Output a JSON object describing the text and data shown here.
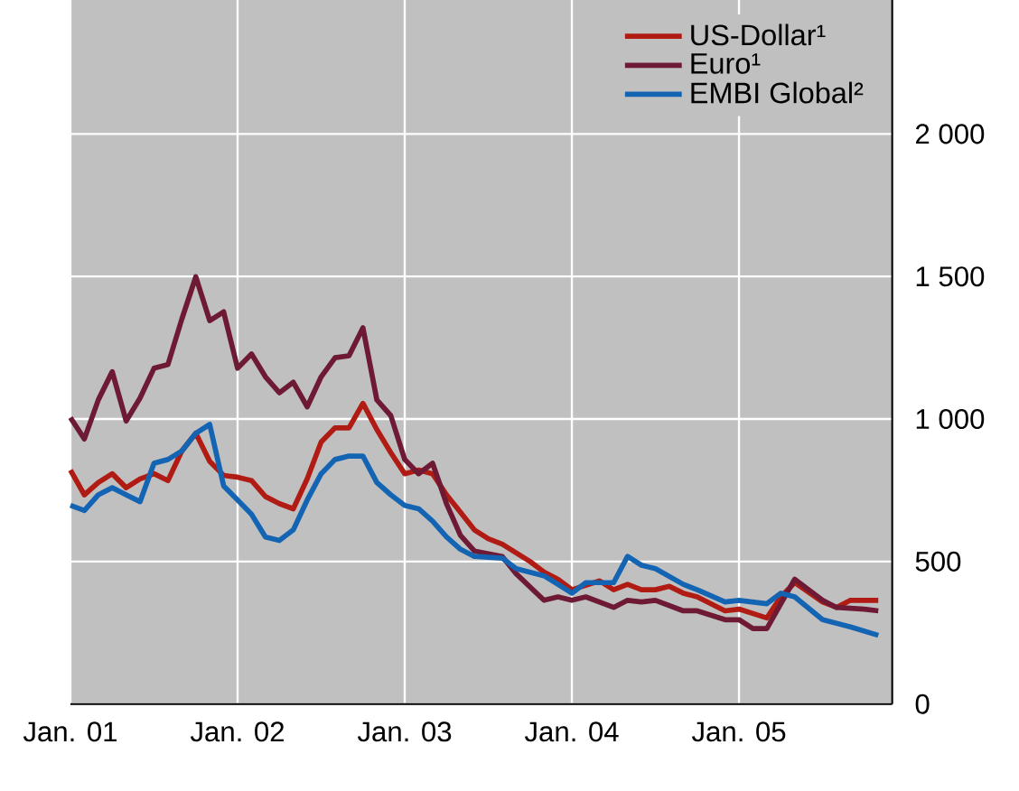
{
  "chart_data": {
    "type": "line",
    "xlim": [
      "2001-01",
      "2005-12"
    ],
    "ylim": [
      0,
      2470
    ],
    "xticks": [
      {
        "value": "2001-01",
        "label": "Jan. 01"
      },
      {
        "value": "2002-01",
        "label": "Jan. 02"
      },
      {
        "value": "2003-01",
        "label": "Jan. 03"
      },
      {
        "value": "2004-01",
        "label": "Jan. 04"
      },
      {
        "value": "2005-01",
        "label": "Jan. 05"
      }
    ],
    "yticks": [
      0,
      500,
      {
        "value": 1000,
        "label": "1 000"
      },
      {
        "value": 1500,
        "label": "1 500"
      },
      {
        "value": 2000,
        "label": "2 000"
      }
    ],
    "grid": true,
    "legend": "top right",
    "series": [
      {
        "name": "US-Dollar¹",
        "color": "#b01c14",
        "x": [
          "2001-01",
          "2001-02",
          "2001-03",
          "2001-04",
          "2001-05",
          "2001-06",
          "2001-07",
          "2001-08",
          "2001-09",
          "2001-10",
          "2001-11",
          "2001-12",
          "2002-01",
          "2002-02",
          "2002-03",
          "2002-04",
          "2002-05",
          "2002-06",
          "2002-07",
          "2002-08",
          "2002-09",
          "2002-10",
          "2002-11",
          "2002-12",
          "2003-01",
          "2003-02",
          "2003-03",
          "2003-04",
          "2003-05",
          "2003-06",
          "2003-07",
          "2003-08",
          "2003-10",
          "2003-11",
          "2003-12",
          "2004-01",
          "2004-03",
          "2004-04",
          "2004-05",
          "2004-06",
          "2004-07",
          "2004-08",
          "2004-09",
          "2004-10",
          "2004-12",
          "2005-01",
          "2005-03",
          "2005-04",
          "2005-05",
          "2005-07",
          "2005-08",
          "2005-09",
          "2005-11"
        ],
        "values": [
          821,
          734,
          777,
          808,
          759,
          790,
          808,
          784,
          888,
          950,
          851,
          802,
          796,
          784,
          728,
          703,
          685,
          790,
          919,
          969,
          969,
          1055,
          963,
          882,
          808,
          821,
          808,
          734,
          673,
          611,
          580,
          561,
          500,
          463,
          438,
          401,
          432,
          401,
          420,
          401,
          401,
          413,
          389,
          376,
          327,
          333,
          302,
          376,
          426,
          358,
          339,
          364,
          364
        ]
      },
      {
        "name": "Euro¹",
        "color": "#6e1a34",
        "x": [
          "2001-01",
          "2001-02",
          "2001-03",
          "2001-04",
          "2001-05",
          "2001-06",
          "2001-07",
          "2001-08",
          "2001-09",
          "2001-10",
          "2001-11",
          "2001-12",
          "2002-01",
          "2002-02",
          "2002-03",
          "2002-04",
          "2002-05",
          "2002-06",
          "2002-07",
          "2002-08",
          "2002-09",
          "2002-10",
          "2002-11",
          "2002-12",
          "2003-01",
          "2003-02",
          "2003-03",
          "2003-04",
          "2003-05",
          "2003-06",
          "2003-08",
          "2003-09",
          "2003-11",
          "2003-12",
          "2004-01",
          "2004-02",
          "2004-04",
          "2004-05",
          "2004-06",
          "2004-07",
          "2004-09",
          "2004-10",
          "2004-12",
          "2005-01",
          "2005-02",
          "2005-03",
          "2005-05",
          "2005-07",
          "2005-08",
          "2005-10",
          "2005-11"
        ],
        "values": [
          1005,
          930,
          1067,
          1166,
          993,
          1074,
          1178,
          1191,
          1351,
          1499,
          1345,
          1376,
          1178,
          1228,
          1148,
          1092,
          1129,
          1043,
          1148,
          1215,
          1222,
          1320,
          1067,
          1012,
          858,
          808,
          845,
          703,
          592,
          537,
          518,
          457,
          364,
          376,
          364,
          376,
          339,
          364,
          358,
          364,
          327,
          327,
          296,
          296,
          265,
          265,
          438,
          364,
          339,
          333,
          327
        ]
      },
      {
        "name": "EMBI Global²",
        "color": "#1464b4",
        "x": [
          "2001-01",
          "2001-02",
          "2001-03",
          "2001-04",
          "2001-05",
          "2001-06",
          "2001-07",
          "2001-08",
          "2001-09",
          "2001-10",
          "2001-11",
          "2001-12",
          "2002-01",
          "2002-02",
          "2002-03",
          "2002-04",
          "2002-05",
          "2002-06",
          "2002-07",
          "2002-08",
          "2002-09",
          "2002-10",
          "2002-11",
          "2002-12",
          "2003-01",
          "2003-02",
          "2003-03",
          "2003-04",
          "2003-05",
          "2003-06",
          "2003-08",
          "2003-09",
          "2003-11",
          "2003-12",
          "2004-01",
          "2004-02",
          "2004-04",
          "2004-05",
          "2004-06",
          "2004-07",
          "2004-09",
          "2004-10",
          "2004-12",
          "2005-01",
          "2005-03",
          "2005-04",
          "2005-05",
          "2005-07",
          "2005-09",
          "2005-11"
        ],
        "values": [
          697,
          679,
          734,
          759,
          734,
          710,
          845,
          858,
          888,
          950,
          981,
          765,
          716,
          666,
          586,
          574,
          611,
          716,
          808,
          858,
          870,
          870,
          777,
          734,
          697,
          685,
          642,
          586,
          543,
          518,
          512,
          475,
          450,
          420,
          389,
          426,
          426,
          518,
          487,
          475,
          420,
          401,
          358,
          364,
          352,
          389,
          376,
          296,
          271,
          241
        ]
      }
    ]
  }
}
